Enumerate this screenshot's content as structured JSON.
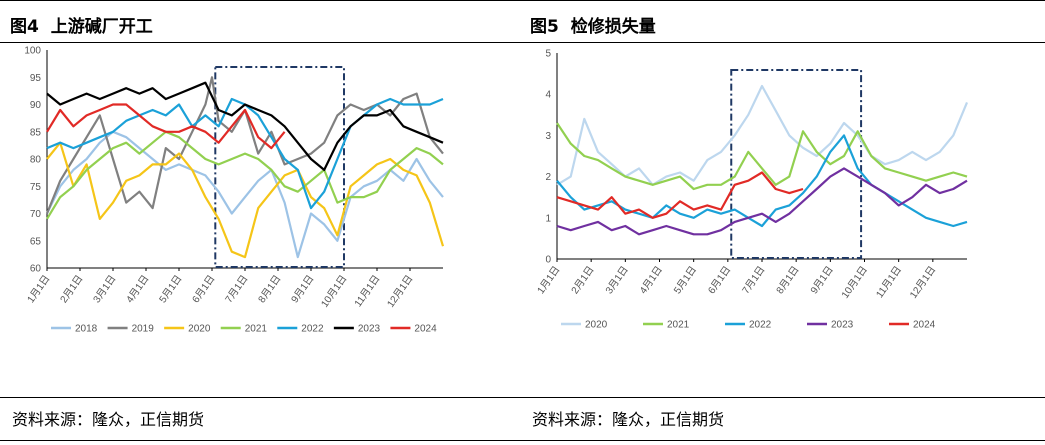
{
  "left": {
    "title_prefix": "图4",
    "title_text": "上游碱厂开工",
    "source": "资料来源：隆众，正信期货"
  },
  "right": {
    "title_prefix": "图5",
    "title_text": "检修损失量",
    "source": "资料来源：隆众，正信期货"
  },
  "chart_data": [
    {
      "type": "line",
      "ylim": [
        60,
        100
      ],
      "yticks": [
        60,
        65,
        70,
        75,
        80,
        85,
        90,
        95,
        100
      ],
      "categories": [
        "1月1日",
        "2月1日",
        "3月1日",
        "4月1日",
        "5月1日",
        "6月1日",
        "7月1日",
        "8月1日",
        "9月1日",
        "10月1日",
        "11月1日",
        "12月1日"
      ],
      "highlight_range": [
        5.1,
        9.0
      ],
      "series": [
        {
          "name": "2018",
          "color": "#9DC3E6",
          "x": [
            0,
            0.4,
            0.8,
            1.2,
            1.6,
            2.0,
            2.4,
            2.8,
            3.2,
            3.6,
            4.0,
            4.4,
            4.8,
            5.2,
            5.6,
            6.0,
            6.4,
            6.8,
            7.2,
            7.6,
            8.0,
            8.4,
            8.8,
            9.2,
            9.6,
            10.0,
            10.4,
            10.8,
            11.2,
            11.6,
            12.0
          ],
          "values": [
            70,
            75,
            78,
            80,
            83,
            85,
            84,
            82,
            80,
            78,
            79,
            78,
            77,
            74,
            70,
            73,
            76,
            78,
            72,
            62,
            70,
            68,
            65,
            73,
            75,
            76,
            78,
            76,
            80,
            76,
            73
          ]
        },
        {
          "name": "2019",
          "color": "#808080",
          "x": [
            0,
            0.4,
            0.8,
            1.2,
            1.6,
            2.0,
            2.4,
            2.8,
            3.2,
            3.6,
            4.0,
            4.4,
            4.8,
            5.0,
            5.2,
            5.6,
            6.0,
            6.4,
            6.8,
            7.2,
            7.6,
            8.0,
            8.4,
            8.8,
            9.2,
            9.6,
            10.0,
            10.4,
            10.8,
            11.2,
            11.6,
            12.0
          ],
          "values": [
            70,
            76,
            80,
            84,
            88,
            80,
            72,
            74,
            71,
            82,
            80,
            85,
            90,
            95,
            87,
            85,
            89,
            81,
            85,
            79,
            80,
            81,
            83,
            88,
            90,
            89,
            90,
            88,
            91,
            92,
            84,
            81
          ]
        },
        {
          "name": "2020",
          "color": "#F5C518",
          "x": [
            0,
            0.4,
            0.8,
            1.2,
            1.6,
            2.0,
            2.4,
            2.8,
            3.2,
            3.6,
            4.0,
            4.4,
            4.8,
            5.2,
            5.6,
            6.0,
            6.4,
            6.8,
            7.2,
            7.6,
            8.0,
            8.4,
            8.8,
            9.2,
            9.6,
            10.0,
            10.4,
            10.8,
            11.2,
            11.6,
            12.0
          ],
          "values": [
            80,
            83,
            75,
            79,
            69,
            72,
            76,
            77,
            79,
            79,
            81,
            78,
            73,
            69,
            63,
            62,
            71,
            74,
            77,
            78,
            73,
            71,
            66,
            75,
            77,
            79,
            80,
            78,
            77,
            72,
            64
          ]
        },
        {
          "name": "2021",
          "color": "#92D050",
          "x": [
            0,
            0.4,
            0.8,
            1.2,
            1.6,
            2.0,
            2.4,
            2.8,
            3.2,
            3.6,
            4.0,
            4.4,
            4.8,
            5.2,
            5.6,
            6.0,
            6.4,
            6.8,
            7.2,
            7.6,
            8.0,
            8.4,
            8.8,
            9.2,
            9.6,
            10.0,
            10.4,
            10.8,
            11.2,
            11.6,
            12.0
          ],
          "values": [
            69,
            73,
            75,
            78,
            80,
            82,
            83,
            81,
            83,
            85,
            84,
            82,
            80,
            79,
            80,
            81,
            80,
            78,
            75,
            74,
            76,
            78,
            72,
            73,
            73,
            74,
            78,
            80,
            82,
            81,
            79
          ]
        },
        {
          "name": "2022",
          "color": "#1BA1D8",
          "x": [
            0,
            0.4,
            0.8,
            1.2,
            1.6,
            2.0,
            2.4,
            2.8,
            3.2,
            3.6,
            4.0,
            4.4,
            4.8,
            5.2,
            5.6,
            6.0,
            6.4,
            6.8,
            7.2,
            7.6,
            8.0,
            8.4,
            8.8,
            9.2,
            9.6,
            10.0,
            10.4,
            10.8,
            11.2,
            11.6,
            12.0
          ],
          "values": [
            82,
            83,
            82,
            83,
            84,
            85,
            87,
            88,
            89,
            88,
            90,
            86,
            88,
            86,
            91,
            90,
            88,
            84,
            80,
            78,
            71,
            74,
            80,
            86,
            88,
            90,
            91,
            90,
            90,
            90,
            91
          ]
        },
        {
          "name": "2023",
          "color": "#000000",
          "x": [
            0,
            0.4,
            0.8,
            1.2,
            1.6,
            2.0,
            2.4,
            2.8,
            3.2,
            3.6,
            4.0,
            4.4,
            4.8,
            5.2,
            5.6,
            6.0,
            6.4,
            6.8,
            7.2,
            7.6,
            8.0,
            8.4,
            8.8,
            9.2,
            9.6,
            10.0,
            10.4,
            10.8,
            11.2,
            11.6,
            12.0
          ],
          "values": [
            92,
            90,
            91,
            92,
            91,
            92,
            93,
            92,
            93,
            91,
            92,
            93,
            94,
            89,
            88,
            90,
            89,
            88,
            86,
            83,
            80,
            78,
            83,
            86,
            88,
            88,
            89,
            86,
            85,
            84,
            83
          ]
        },
        {
          "name": "2024",
          "color": "#E12A26",
          "x": [
            0,
            0.4,
            0.8,
            1.2,
            1.6,
            2.0,
            2.4,
            2.8,
            3.2,
            3.6,
            4.0,
            4.4,
            4.8,
            5.2,
            5.6,
            6.0,
            6.4,
            6.8,
            7.2
          ],
          "values": [
            85,
            89,
            86,
            88,
            89,
            90,
            90,
            88,
            86,
            85,
            85,
            86,
            85,
            83,
            86,
            89,
            84,
            82,
            85
          ]
        }
      ]
    },
    {
      "type": "line",
      "ylim": [
        0,
        5
      ],
      "yticks": [
        0,
        1,
        2,
        3,
        4,
        5
      ],
      "categories": [
        "1月1日",
        "2月1日",
        "3月1日",
        "4月1日",
        "5月1日",
        "6月1日",
        "7月1日",
        "8月1日",
        "9月1日",
        "10月1日",
        "11月1日",
        "12月1日"
      ],
      "highlight_range": [
        5.1,
        8.9
      ],
      "series": [
        {
          "name": "2020",
          "color": "#BDD7EE",
          "x": [
            0,
            0.4,
            0.8,
            1.2,
            1.6,
            2.0,
            2.4,
            2.8,
            3.2,
            3.6,
            4.0,
            4.4,
            4.8,
            5.2,
            5.6,
            6.0,
            6.4,
            6.8,
            7.2,
            7.6,
            8.0,
            8.4,
            8.8,
            9.2,
            9.6,
            10.0,
            10.4,
            10.8,
            11.2,
            11.6,
            12.0
          ],
          "values": [
            1.8,
            2.0,
            3.4,
            2.6,
            2.3,
            2.0,
            2.2,
            1.8,
            2.0,
            2.1,
            1.9,
            2.4,
            2.6,
            3.0,
            3.5,
            4.2,
            3.6,
            3.0,
            2.7,
            2.5,
            2.8,
            3.3,
            3.0,
            2.5,
            2.3,
            2.4,
            2.6,
            2.4,
            2.6,
            3.0,
            3.8
          ]
        },
        {
          "name": "2021",
          "color": "#92D050",
          "x": [
            0,
            0.4,
            0.8,
            1.2,
            1.6,
            2.0,
            2.4,
            2.8,
            3.2,
            3.6,
            4.0,
            4.4,
            4.8,
            5.2,
            5.6,
            6.0,
            6.4,
            6.8,
            7.2,
            7.6,
            8.0,
            8.4,
            8.8,
            9.2,
            9.6,
            10.0,
            10.4,
            10.8,
            11.2,
            11.6,
            12.0
          ],
          "values": [
            3.3,
            2.8,
            2.5,
            2.4,
            2.2,
            2.0,
            1.9,
            1.8,
            1.9,
            2.0,
            1.7,
            1.8,
            1.8,
            2.0,
            2.6,
            2.2,
            1.8,
            2.0,
            3.1,
            2.6,
            2.3,
            2.5,
            3.1,
            2.5,
            2.2,
            2.1,
            2.0,
            1.9,
            2.0,
            2.1,
            2.0
          ]
        },
        {
          "name": "2022",
          "color": "#1BA1D8",
          "x": [
            0,
            0.4,
            0.8,
            1.2,
            1.6,
            2.0,
            2.4,
            2.8,
            3.2,
            3.6,
            4.0,
            4.4,
            4.8,
            5.2,
            5.6,
            6.0,
            6.4,
            6.8,
            7.2,
            7.6,
            8.0,
            8.4,
            8.8,
            9.2,
            9.6,
            10.0,
            10.4,
            10.8,
            11.2,
            11.6,
            12.0
          ],
          "values": [
            1.9,
            1.5,
            1.2,
            1.3,
            1.4,
            1.2,
            1.1,
            1.0,
            1.3,
            1.1,
            1.0,
            1.2,
            1.1,
            1.2,
            1.0,
            0.8,
            1.2,
            1.3,
            1.6,
            2.0,
            2.6,
            3.0,
            2.2,
            1.8,
            1.6,
            1.4,
            1.2,
            1.0,
            0.9,
            0.8,
            0.9
          ]
        },
        {
          "name": "2023",
          "color": "#7030A0",
          "x": [
            0,
            0.4,
            0.8,
            1.2,
            1.6,
            2.0,
            2.4,
            2.8,
            3.2,
            3.6,
            4.0,
            4.4,
            4.8,
            5.2,
            5.6,
            6.0,
            6.4,
            6.8,
            7.2,
            7.6,
            8.0,
            8.4,
            8.8,
            9.2,
            9.6,
            10.0,
            10.4,
            10.8,
            11.2,
            11.6,
            12.0
          ],
          "values": [
            0.8,
            0.7,
            0.8,
            0.9,
            0.7,
            0.8,
            0.6,
            0.7,
            0.8,
            0.7,
            0.6,
            0.6,
            0.7,
            0.9,
            1.0,
            1.1,
            0.9,
            1.1,
            1.4,
            1.7,
            2.0,
            2.2,
            2.0,
            1.8,
            1.6,
            1.3,
            1.5,
            1.8,
            1.6,
            1.7,
            1.9
          ]
        },
        {
          "name": "2024",
          "color": "#E12A26",
          "x": [
            0,
            0.4,
            0.8,
            1.2,
            1.6,
            2.0,
            2.4,
            2.8,
            3.2,
            3.6,
            4.0,
            4.4,
            4.8,
            5.2,
            5.6,
            6.0,
            6.4,
            6.8,
            7.2
          ],
          "values": [
            1.5,
            1.4,
            1.3,
            1.2,
            1.5,
            1.1,
            1.2,
            1.0,
            1.1,
            1.4,
            1.2,
            1.3,
            1.2,
            1.8,
            1.9,
            2.1,
            1.7,
            1.6,
            1.7
          ]
        }
      ]
    }
  ]
}
